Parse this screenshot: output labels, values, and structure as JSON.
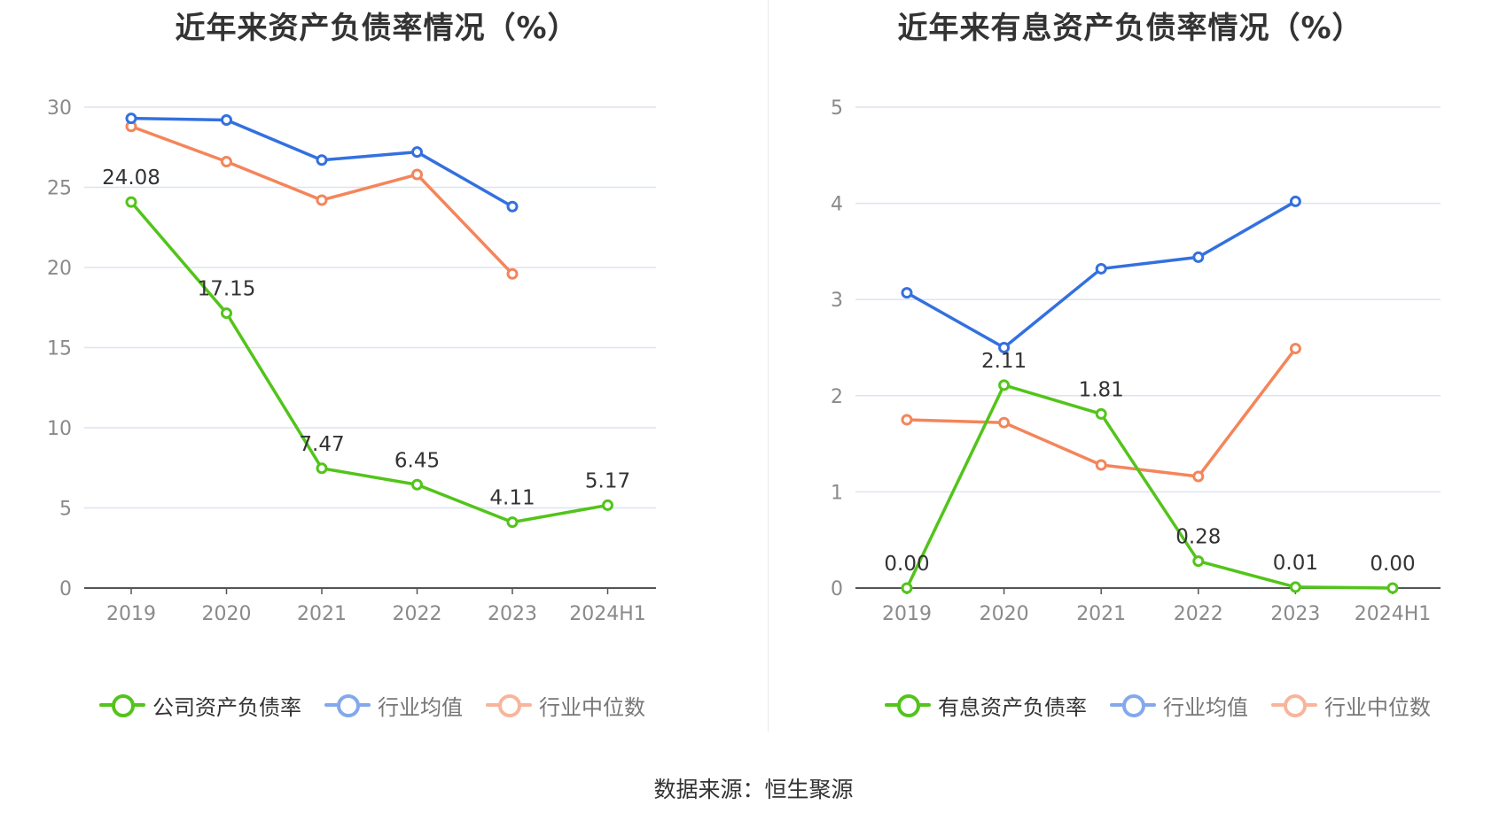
{
  "chart_data": [
    {
      "type": "line",
      "title": "近年来资产负债率情况（%）",
      "categories": [
        "2019",
        "2020",
        "2021",
        "2022",
        "2023",
        "2024H1"
      ],
      "ylim": [
        0,
        30
      ],
      "yticks": [
        0,
        5,
        10,
        15,
        20,
        25,
        30
      ],
      "grid": true,
      "legend_position": "bottom",
      "series": [
        {
          "name": "公司资产负债率",
          "color": "#52c41a",
          "values": [
            24.08,
            17.15,
            7.47,
            6.45,
            4.11,
            5.17
          ],
          "labels": [
            "24.08",
            "17.15",
            "7.47",
            "6.45",
            "4.11",
            "5.17"
          ]
        },
        {
          "name": "行业均值",
          "color": "#3370e0",
          "values": [
            29.3,
            29.2,
            26.7,
            27.2,
            23.8,
            null
          ]
        },
        {
          "name": "行业中位数",
          "color": "#f4855a",
          "values": [
            28.8,
            26.6,
            24.2,
            25.8,
            19.6,
            null
          ]
        }
      ]
    },
    {
      "type": "line",
      "title": "近年来有息资产负债率情况（%）",
      "categories": [
        "2019",
        "2020",
        "2021",
        "2022",
        "2023",
        "2024H1"
      ],
      "ylim": [
        0,
        5
      ],
      "yticks": [
        0,
        1,
        2,
        3,
        4,
        5
      ],
      "grid": true,
      "legend_position": "bottom",
      "series": [
        {
          "name": "有息资产负债率",
          "color": "#52c41a",
          "values": [
            0.0,
            2.11,
            1.81,
            0.28,
            0.01,
            0.0
          ],
          "labels": [
            "0.00",
            "2.11",
            "1.81",
            "0.28",
            "0.01",
            "0.00"
          ]
        },
        {
          "name": "行业均值",
          "color": "#3370e0",
          "values": [
            3.07,
            2.5,
            3.32,
            3.44,
            4.02,
            null
          ]
        },
        {
          "name": "行业中位数",
          "color": "#f4855a",
          "values": [
            1.75,
            1.72,
            1.28,
            1.16,
            2.49,
            null
          ]
        }
      ]
    }
  ],
  "footer": {
    "source": "数据来源：恒生聚源"
  }
}
